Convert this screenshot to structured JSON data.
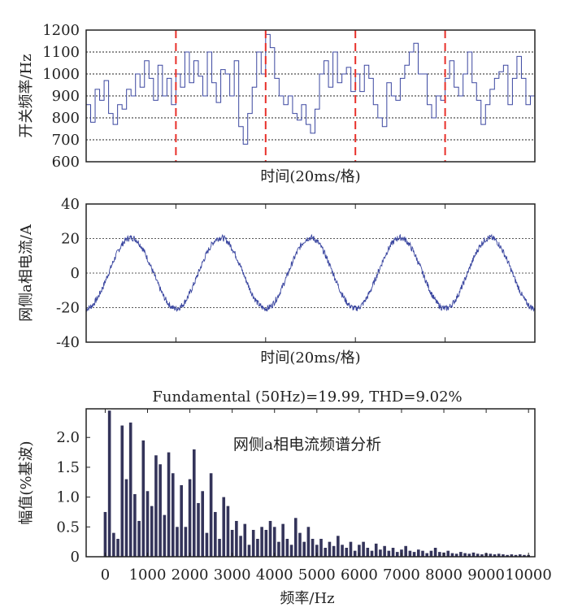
{
  "colors": {
    "line": "#3b47a0",
    "bar": "#34345a",
    "marker": "#e8302a",
    "grid": "#222222"
  },
  "chart_data": [
    {
      "type": "line",
      "ylabel": "开关频率/Hz",
      "xlabel": "时间(20ms/格)",
      "ylim": [
        600,
        1200
      ],
      "yticks": [
        "600",
        "700",
        "800",
        "900",
        "1000",
        "1100",
        "1200"
      ],
      "xlim_ms": [
        0,
        100
      ],
      "markers_ms": [
        20,
        40,
        60,
        80
      ],
      "grid": "dotted-horizontal",
      "y": [
        860,
        780,
        930,
        880,
        970,
        820,
        770,
        860,
        840,
        930,
        900,
        1000,
        940,
        1060,
        980,
        880,
        1040,
        900,
        980,
        860,
        1000,
        940,
        1100,
        960,
        1060,
        990,
        900,
        1100,
        960,
        870,
        1020,
        1000,
        900,
        1060,
        760,
        680,
        820,
        940,
        1100,
        1000,
        1180,
        1120,
        980,
        900,
        860,
        900,
        820,
        790,
        860,
        770,
        730,
        840,
        1000,
        1060,
        940,
        1100,
        960,
        1000,
        1030,
        920,
        1000,
        920,
        1040,
        980,
        860,
        800,
        760,
        960,
        900,
        880,
        980,
        1040,
        1100,
        1140,
        1000,
        1000,
        860,
        800,
        900,
        880,
        980,
        1060,
        940,
        900,
        1000,
        1100,
        960,
        880,
        770,
        860,
        930,
        980,
        1010,
        1040,
        860,
        980,
        1080,
        980,
        860,
        900
      ]
    },
    {
      "type": "line",
      "ylabel": "网侧a相电流/A",
      "xlabel": "时间(20ms/格)",
      "ylim": [
        -40,
        40
      ],
      "yticks": [
        "-40",
        "-20",
        "0",
        "20",
        "40"
      ],
      "xlim_ms": [
        0,
        100
      ],
      "period_ms": 20,
      "amplitude": 20.5,
      "ripple_amplitude": 1.8,
      "grid": "dotted-horizontal"
    },
    {
      "type": "bar",
      "title": "Fundamental (50Hz)=19.99, THD=9.02%",
      "annotation": "网侧a相电流频谱分析",
      "ylabel": "幅值(%基波)",
      "xlabel": "频率/Hz",
      "xlim": [
        -450,
        10150
      ],
      "ylim": [
        0,
        2.48
      ],
      "xticks": [
        "0",
        "1000",
        "2000",
        "3000",
        "4000",
        "5000",
        "6000",
        "7000",
        "8000",
        "9000",
        "10000"
      ],
      "yticks": [
        "0",
        "0.5",
        "1.0",
        "1.5",
        "2.0"
      ],
      "x_step_hz": 100,
      "values": [
        0.75,
        2.45,
        0.4,
        0.3,
        2.2,
        1.3,
        2.25,
        1.05,
        0.6,
        1.95,
        1.1,
        0.85,
        1.7,
        1.55,
        0.7,
        1.75,
        1.4,
        0.5,
        1.2,
        0.5,
        1.3,
        1.8,
        0.9,
        1.1,
        0.4,
        1.4,
        0.75,
        0.3,
        1.0,
        0.85,
        0.45,
        0.6,
        0.35,
        0.55,
        0.2,
        0.45,
        0.3,
        0.5,
        0.45,
        0.6,
        0.5,
        0.25,
        0.55,
        0.3,
        0.2,
        0.65,
        0.4,
        0.25,
        0.5,
        0.3,
        0.2,
        0.3,
        0.15,
        0.25,
        0.18,
        0.35,
        0.2,
        0.15,
        0.25,
        0.1,
        0.2,
        0.25,
        0.15,
        0.1,
        0.22,
        0.12,
        0.18,
        0.1,
        0.15,
        0.08,
        0.12,
        0.18,
        0.1,
        0.08,
        0.12,
        0.1,
        0.06,
        0.1,
        0.15,
        0.08,
        0.07,
        0.1,
        0.06,
        0.05,
        0.08,
        0.06,
        0.05,
        0.07,
        0.05,
        0.04,
        0.06,
        0.05,
        0.04,
        0.05,
        0.04,
        0.03,
        0.04,
        0.03,
        0.04,
        0.03,
        0.03
      ]
    }
  ]
}
